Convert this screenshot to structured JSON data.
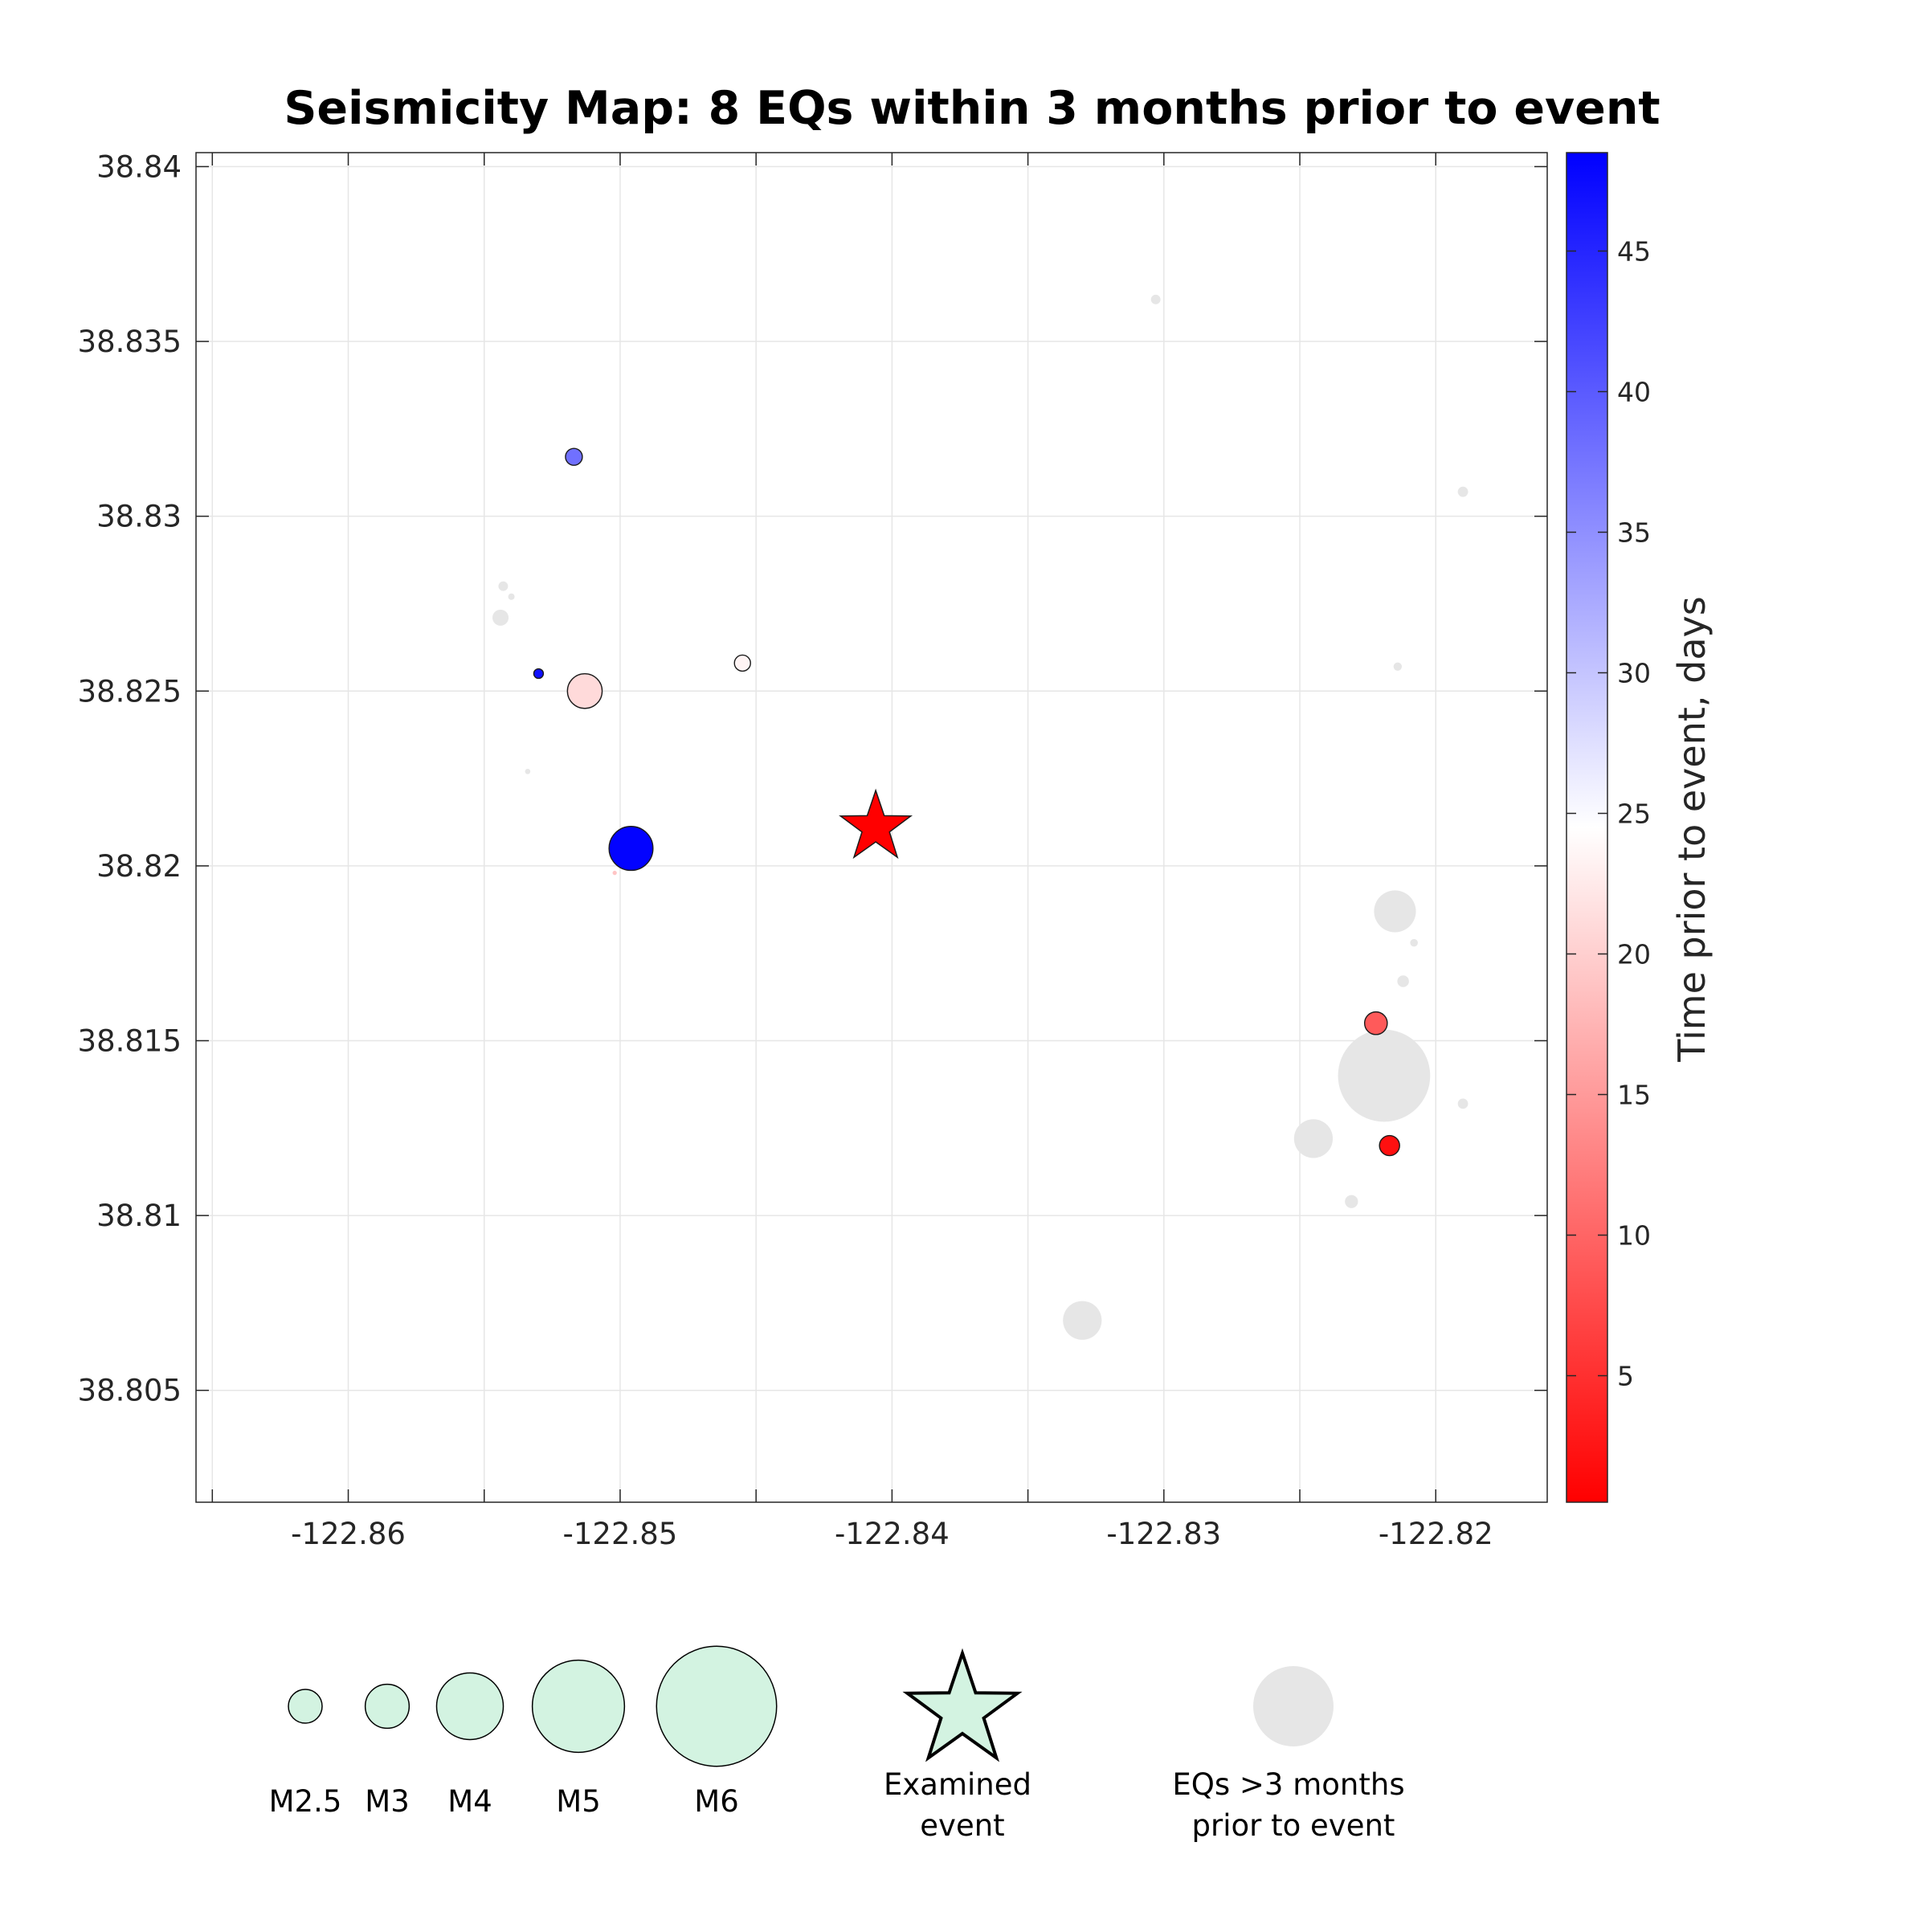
{
  "chart_data": {
    "type": "scatter",
    "title": "Seismicity Map: 8 EQs within 3 months prior to event",
    "xlim": [
      -122.8656,
      -122.8159
    ],
    "ylim": [
      38.8018,
      38.8404
    ],
    "xticks": [
      -122.86,
      -122.85,
      -122.84,
      -122.83,
      -122.82
    ],
    "xtick_labels": [
      "-122.86",
      "-122.85",
      "-122.84",
      "-122.83",
      "-122.82"
    ],
    "yticks": [
      38.805,
      38.81,
      38.815,
      38.82,
      38.825,
      38.83,
      38.835,
      38.84
    ],
    "ytick_labels": [
      "38.805",
      "38.81",
      "38.815",
      "38.82",
      "38.825",
      "38.83",
      "38.835",
      "38.84"
    ],
    "grid": true,
    "examined_event": {
      "lon": -122.8406,
      "lat": 38.8211,
      "color": "#ff0000"
    },
    "recent_events": [
      {
        "lon": -122.8517,
        "lat": 38.8317,
        "mag": 1.55,
        "days": 38
      },
      {
        "lon": -122.8455,
        "lat": 38.8258,
        "mag": 1.5,
        "days": 23.5
      },
      {
        "lon": -122.853,
        "lat": 38.8255,
        "mag": 1.05,
        "days": 47
      },
      {
        "lon": -122.8513,
        "lat": 38.825,
        "mag": 2.55,
        "days": 21
      },
      {
        "lon": -122.8496,
        "lat": 38.8205,
        "mag": 3.0,
        "days": 48.2
      },
      {
        "lon": -122.8222,
        "lat": 38.8155,
        "mag": 1.9,
        "days": 9
      },
      {
        "lon": -122.8217,
        "lat": 38.812,
        "mag": 1.75,
        "days": 2
      },
      {
        "lon": -122.8502,
        "lat": 38.8198,
        "mag": 0.6,
        "days": 19
      }
    ],
    "older_events": [
      {
        "lon": -122.8303,
        "lat": 38.8362,
        "mag": 1.05
      },
      {
        "lon": -122.819,
        "lat": 38.8307,
        "mag": 1.1
      },
      {
        "lon": -122.8543,
        "lat": 38.828,
        "mag": 1.05
      },
      {
        "lon": -122.854,
        "lat": 38.8277,
        "mag": 0.8
      },
      {
        "lon": -122.8544,
        "lat": 38.8271,
        "mag": 1.5
      },
      {
        "lon": -122.8214,
        "lat": 38.8257,
        "mag": 0.95
      },
      {
        "lon": -122.8534,
        "lat": 38.8227,
        "mag": 0.7
      },
      {
        "lon": -122.8215,
        "lat": 38.8187,
        "mag": 2.9
      },
      {
        "lon": -122.8208,
        "lat": 38.8178,
        "mag": 0.9
      },
      {
        "lon": -122.8212,
        "lat": 38.8167,
        "mag": 1.2
      },
      {
        "lon": -122.8219,
        "lat": 38.814,
        "mag": 5.0
      },
      {
        "lon": -122.819,
        "lat": 38.8132,
        "mag": 1.1
      },
      {
        "lon": -122.8245,
        "lat": 38.8122,
        "mag": 2.75
      },
      {
        "lon": -122.8231,
        "lat": 38.8104,
        "mag": 1.3
      },
      {
        "lon": -122.833,
        "lat": 38.807,
        "mag": 2.75
      }
    ],
    "colorbar": {
      "label": "Time prior to event, days",
      "range": [
        0.5,
        48.5
      ],
      "ticks": [
        5,
        10,
        15,
        20,
        25,
        30,
        35,
        40,
        45
      ],
      "tick_labels": [
        "5",
        "10",
        "15",
        "20",
        "25",
        "30",
        "35",
        "40",
        "45"
      ],
      "colormap": [
        "#ff0000",
        "#ffffff",
        "#0000ff"
      ]
    },
    "legend": {
      "magnitudes": [
        {
          "mag": 2.5,
          "label": "M2.5"
        },
        {
          "mag": 3,
          "label": "M3"
        },
        {
          "mag": 4,
          "label": "M4"
        },
        {
          "mag": 5,
          "label": "M5"
        },
        {
          "mag": 6,
          "label": "M6"
        }
      ],
      "legend_fill": "#d3f3e1",
      "older_color": "#e6e6e6",
      "examined_label": [
        "Examined",
        "event"
      ],
      "older_label": [
        "EQs >3 months",
        "prior to event"
      ]
    }
  }
}
